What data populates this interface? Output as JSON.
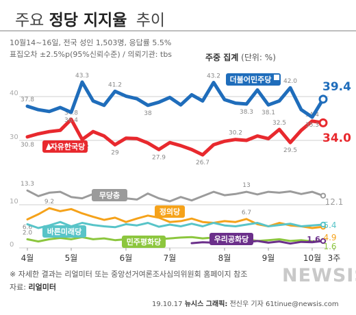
{
  "header": {
    "title_pre": "주요",
    "title_bold": "정당 지지율",
    "title_post": "추이",
    "info_line1": "10월14~16일, 전국 성인 1,503명, 응답률 5.5%",
    "info_line2": "표집오차 ±2.5%p(95%신뢰수준) / 의뢰기관: tbs",
    "agg_bold": "주중 집계",
    "agg_unit": "(단위: %)"
  },
  "footer": {
    "note": "※ 자세한 결과는 리얼미터 또는 중앙선거여론조사심의위원회 홈페이지 참조",
    "source_label": "자료:",
    "source_name": "리얼미터",
    "date": "19.10.17",
    "agency": "뉴시스 그래픽:",
    "author": "전신우 기자 61tinue@newsis.com",
    "watermark": "NEWSIS"
  },
  "chart_data": {
    "type": "line",
    "x_labels": [
      "4월",
      "5월",
      "6월",
      "7월",
      "8월",
      "9월",
      "10월",
      "3주"
    ],
    "x_label_positions": [
      0,
      4,
      9,
      13,
      18,
      22,
      26,
      28
    ],
    "ylim": [
      0,
      45
    ],
    "yticks": [
      0,
      10,
      30,
      40
    ],
    "grid": true,
    "series": [
      {
        "name": "더불어민주당",
        "color": "#1f6dbb",
        "stroke_width": 5,
        "values": [
          37.8,
          37.0,
          36.6,
          37.5,
          36.4,
          43.3,
          39.0,
          38.0,
          41.2,
          40.1,
          39.5,
          38.0,
          38.7,
          39.8,
          38.1,
          40.4,
          39.0,
          43.2,
          39.3,
          38.5,
          38.3,
          41.5,
          38.1,
          39.0,
          42.0,
          37.0,
          35.3,
          39.4
        ],
        "labels": [
          {
            "i": 0,
            "text": "37.8"
          },
          {
            "i": 4,
            "text": "36.4"
          },
          {
            "i": 5,
            "text": "43.3"
          },
          {
            "i": 8,
            "text": "41.2"
          },
          {
            "i": 11,
            "text": "38"
          },
          {
            "i": 17,
            "text": "43.2"
          },
          {
            "i": 20,
            "text": "38.3"
          },
          {
            "i": 22,
            "text": "38.1"
          },
          {
            "i": 24,
            "text": "42.0"
          },
          {
            "i": 26,
            "text": "35.3"
          }
        ],
        "end_label": "39.4",
        "tag": "더불어민주당"
      },
      {
        "name": "자유한국당",
        "color": "#e8292e",
        "stroke_width": 5,
        "values": [
          30.8,
          31.5,
          32.0,
          32.3,
          34.8,
          30.2,
          32.0,
          31.0,
          29.0,
          30.5,
          30.4,
          29.4,
          27.9,
          29.5,
          28.8,
          27.9,
          26.7,
          29.0,
          29.8,
          30.2,
          30.0,
          31.0,
          30.4,
          32.5,
          29.5,
          32.3,
          34.4,
          34.0
        ],
        "labels": [
          {
            "i": 0,
            "text": "30.8"
          },
          {
            "i": 4,
            "text": "34.8"
          },
          {
            "i": 5,
            "text": "30.2"
          },
          {
            "i": 8,
            "text": "29"
          },
          {
            "i": 12,
            "text": "27.9"
          },
          {
            "i": 16,
            "text": "26.7"
          },
          {
            "i": 19,
            "text": "30.2"
          },
          {
            "i": 23,
            "text": "32.5"
          },
          {
            "i": 24,
            "text": "29.5"
          },
          {
            "i": 26,
            "text": "34.4"
          }
        ],
        "end_label": "34.0",
        "tag": "자유한국당"
      },
      {
        "name": "무당층",
        "color": "#9b9b9b",
        "stroke_width": 3,
        "values": [
          13.3,
          12.0,
          12.8,
          13.0,
          11.8,
          11.5,
          12.5,
          11.8,
          12.0,
          11.5,
          11.2,
          12.6,
          11.5,
          10.8,
          11.8,
          11.0,
          12.0,
          13.0,
          12.2,
          12.5,
          13.0,
          12.4,
          13.0,
          12.8,
          13.1,
          12.5,
          13.0,
          12.1
        ],
        "labels": [
          {
            "i": 0,
            "text": "13.3"
          },
          {
            "i": 20,
            "text": "13"
          }
        ],
        "end_label": "12.1",
        "tag": "무당층"
      },
      {
        "name": "정의당",
        "color": "#f5a21a",
        "stroke_width": 3,
        "values": [
          6.6,
          7.8,
          9.2,
          8.5,
          9.0,
          8.0,
          7.2,
          6.5,
          7.0,
          6.0,
          6.8,
          7.5,
          7.0,
          6.0,
          6.2,
          6.8,
          6.0,
          5.8,
          6.2,
          6.0,
          6.7,
          5.5,
          5.0,
          5.8,
          5.2,
          5.0,
          4.6,
          4.9
        ],
        "labels": [
          {
            "i": 0,
            "text": "6.6"
          },
          {
            "i": 2,
            "text": "9.2"
          },
          {
            "i": 20,
            "text": "6.7"
          }
        ],
        "end_label": "4.9",
        "tag": "정의당"
      },
      {
        "name": "바른미래당",
        "color": "#58c4c8",
        "stroke_width": 3,
        "values": [
          5.5,
          4.6,
          5.2,
          6.0,
          5.0,
          5.8,
          5.3,
          5.0,
          4.8,
          5.5,
          5.2,
          5.8,
          4.9,
          5.4,
          5.0,
          5.6,
          5.0,
          5.8,
          5.2,
          5.0,
          5.4,
          5.8,
          5.0,
          5.3,
          5.6,
          5.0,
          5.2,
          5.4
        ],
        "labels": [],
        "end_label": "5.4",
        "tag": "바른미래당"
      },
      {
        "name": "민주평화당",
        "color": "#8cc63e",
        "stroke_width": 3,
        "values": [
          2.0,
          1.5,
          2.0,
          2.3,
          2.0,
          2.5,
          2.0,
          2.2,
          1.8,
          2.0,
          2.5,
          2.2,
          2.0,
          2.2,
          2.4,
          2.5,
          2.2,
          2.4,
          2.0,
          1.8,
          2.0,
          1.6,
          1.8,
          2.0,
          1.6,
          1.8,
          1.5,
          1.6
        ],
        "labels": [
          {
            "i": 0,
            "text": "2.0"
          }
        ],
        "end_label": "1.6",
        "tag": "민주평화당"
      },
      {
        "name": "우리공화당",
        "color": "#6b2f8a",
        "stroke_width": 3,
        "start_index": 15,
        "values": [
          1.1,
          1.3,
          1.2,
          1.4,
          1.0,
          1.3,
          1.6,
          1.2,
          1.5,
          1.0,
          1.4,
          1.3,
          1.6
        ],
        "labels": [],
        "end_label": "1.6",
        "tag": "우리공화당"
      }
    ]
  }
}
